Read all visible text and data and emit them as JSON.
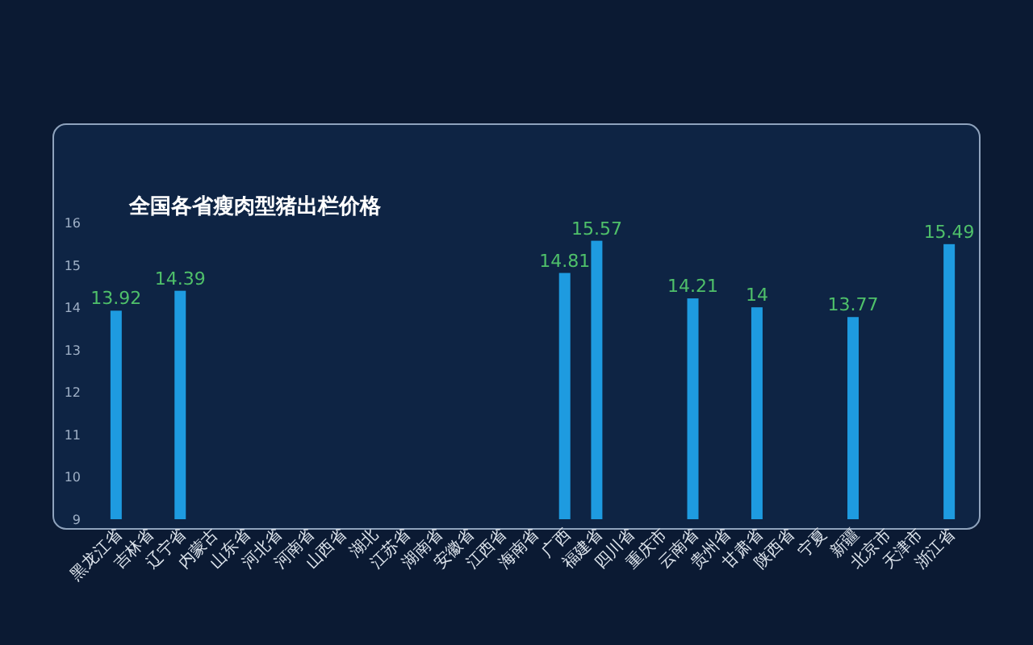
{
  "chart_data": {
    "type": "bar",
    "title": "全国各省瘦肉型猪出栏价格",
    "categories": [
      "黑龙江省",
      "吉林省",
      "辽宁省",
      "内蒙古",
      "山东省",
      "河北省",
      "河南省",
      "山西省",
      "湖北",
      "江苏省",
      "湖南省",
      "安徽省",
      "江西省",
      "海南省",
      "广西",
      "福建省",
      "四川省",
      "重庆市",
      "云南省",
      "贵州省",
      "甘肃省",
      "陕西省",
      "宁夏",
      "新疆",
      "北京市",
      "天津市",
      "浙江省"
    ],
    "values": [
      13.92,
      null,
      14.39,
      null,
      null,
      null,
      null,
      null,
      null,
      null,
      null,
      null,
      null,
      null,
      14.81,
      15.57,
      null,
      null,
      14.21,
      null,
      14,
      null,
      null,
      13.77,
      null,
      null,
      15.49
    ],
    "color": "#1e9be0",
    "data_labels": true,
    "ylim": [
      9,
      16
    ],
    "yticks": [
      9,
      10,
      11,
      12,
      13,
      14,
      15,
      16
    ],
    "grid": false
  }
}
